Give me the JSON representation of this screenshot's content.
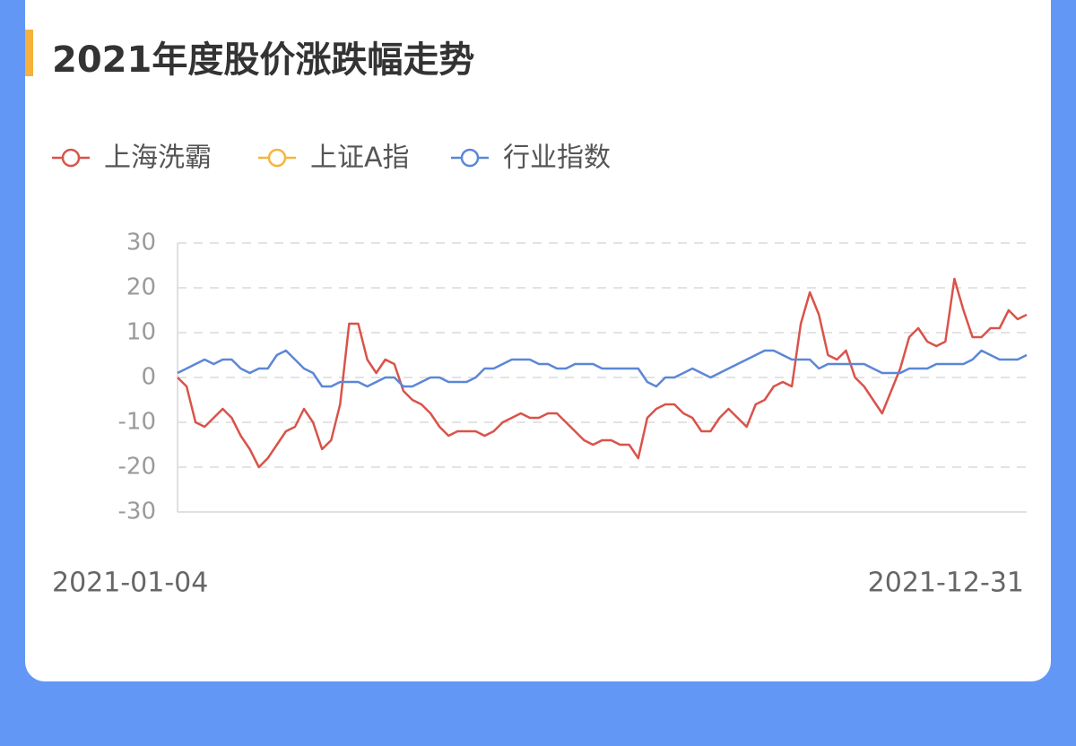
{
  "chart_data": {
    "type": "line",
    "title": "2021年度股价涨跌幅走势",
    "categories": [
      "2021-01-04",
      null,
      null,
      null,
      null,
      null,
      null,
      null,
      null,
      null,
      null,
      null,
      null,
      null,
      null,
      null,
      null,
      null,
      null,
      null,
      null,
      null,
      null,
      null,
      null,
      null,
      null,
      null,
      null,
      null,
      null,
      null,
      null,
      null,
      null,
      null,
      null,
      null,
      null,
      null,
      null,
      null,
      null,
      null,
      null,
      null,
      null,
      null,
      null,
      null,
      null,
      null,
      null,
      null,
      null,
      null,
      null,
      null,
      null,
      null,
      null,
      null,
      null,
      null,
      null,
      null,
      null,
      null,
      null,
      null,
      null,
      null,
      null,
      null,
      null,
      null,
      null,
      null,
      null,
      null,
      null,
      null,
      null,
      null,
      null,
      null,
      null,
      null,
      null,
      null,
      null,
      null,
      null,
      null,
      "2021-12-31"
    ],
    "series": [
      {
        "name": "上海洗霸",
        "color": "#d9534a",
        "values": [
          0,
          -2,
          -10,
          -11,
          -9,
          -7,
          -9,
          -13,
          -16,
          -20,
          -18,
          -15,
          -12,
          -11,
          -7,
          -10,
          -16,
          -14,
          -6,
          12,
          12,
          4,
          1,
          4,
          3,
          -3,
          -5,
          -6,
          -8,
          -11,
          -13,
          -12,
          -12,
          -12,
          -13,
          -12,
          -10,
          -9,
          -8,
          -9,
          -9,
          -8,
          -8,
          -10,
          -12,
          -14,
          -15,
          -14,
          -14,
          -15,
          -15,
          -18,
          -9,
          -7,
          -6,
          -6,
          -8,
          -9,
          -12,
          -12,
          -9,
          -7,
          -9,
          -11,
          -6,
          -5,
          -2,
          -1,
          -2,
          12,
          19,
          14,
          5,
          4,
          6,
          0,
          -2,
          -5,
          -8,
          -3,
          2,
          9,
          11,
          8,
          7,
          8,
          22,
          15,
          9,
          9,
          11,
          11,
          15,
          13,
          14
        ]
      },
      {
        "name": "上证A指",
        "color": "#f5b53e",
        "values": [
          null,
          null,
          null,
          null,
          null,
          null,
          null,
          null,
          null,
          null,
          null,
          null,
          null,
          null,
          null,
          null,
          null,
          null,
          null,
          null,
          null,
          null,
          null,
          null,
          null,
          null,
          null,
          null,
          null,
          null,
          null,
          null,
          null,
          null,
          null,
          null,
          null,
          null,
          null,
          null,
          null,
          null,
          null,
          null,
          null,
          null,
          null,
          null,
          null,
          null,
          null,
          null,
          null,
          null,
          null,
          null,
          null,
          null,
          null,
          null,
          null,
          null,
          null,
          null,
          null,
          null,
          null,
          null,
          null,
          null,
          null,
          null,
          null,
          null,
          null,
          null,
          null,
          null,
          null,
          null,
          null,
          null,
          null,
          null,
          null,
          null,
          null,
          null,
          null,
          null,
          null,
          null,
          null,
          null,
          null
        ]
      },
      {
        "name": "行业指数",
        "color": "#5b87d6",
        "values": [
          1,
          2,
          3,
          4,
          3,
          4,
          4,
          2,
          1,
          2,
          2,
          5,
          6,
          4,
          2,
          1,
          -2,
          -2,
          -1,
          -1,
          -1,
          -2,
          -1,
          0,
          0,
          -2,
          -2,
          -1,
          0,
          0,
          -1,
          -1,
          -1,
          0,
          2,
          2,
          3,
          4,
          4,
          4,
          3,
          3,
          2,
          2,
          3,
          3,
          3,
          2,
          2,
          2,
          2,
          2,
          -1,
          -2,
          0,
          0,
          1,
          2,
          1,
          0,
          1,
          2,
          3,
          4,
          5,
          6,
          6,
          5,
          4,
          4,
          4,
          2,
          3,
          3,
          3,
          3,
          3,
          2,
          1,
          1,
          1,
          2,
          2,
          2,
          3,
          3,
          3,
          3,
          4,
          6,
          5,
          4,
          4,
          4,
          5
        ]
      }
    ],
    "ylim": [
      -30,
      30
    ],
    "yticks": [
      -30,
      -20,
      -10,
      0,
      10,
      20,
      30
    ],
    "grid": true
  }
}
